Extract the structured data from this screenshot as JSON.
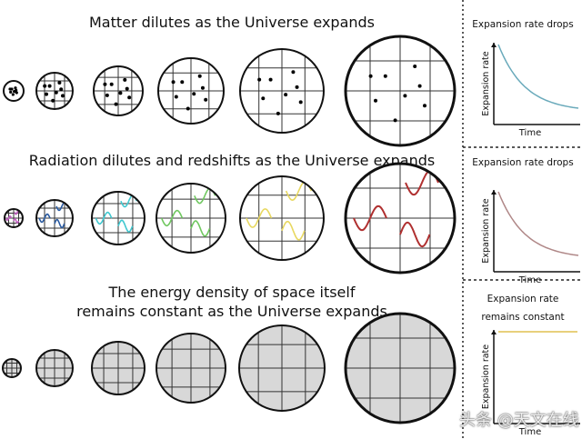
{
  "rows": [
    {
      "title_lines": [
        "Matter dilutes as the Universe expands"
      ],
      "kind": "matter"
    },
    {
      "title_lines": [
        "Radiation dilutes and redshifts as the Universe expands"
      ],
      "kind": "radiation",
      "wave_colors": [
        "#c060c0",
        "#2a5aa0",
        "#40c8d0",
        "#70c860",
        "#e8d860",
        "#b03030"
      ]
    },
    {
      "title_lines": [
        "The energy density of space itself",
        "remains constant as the Universe expands"
      ],
      "kind": "vacuum",
      "fill": "#d8d8d8"
    }
  ],
  "panels": [
    {
      "title_lines": [
        "Expansion rate drops"
      ],
      "ylabel": "Expansion rate",
      "xlabel": "Time",
      "curve": "decay",
      "color": "#6aaabb"
    },
    {
      "title_lines": [
        "Expansion rate drops"
      ],
      "ylabel": "Expansion rate",
      "xlabel": "Time",
      "curve": "decay",
      "color": "#b08888"
    },
    {
      "title_lines": [
        "Expansion rate",
        "remains constant"
      ],
      "ylabel": "Expansion rate",
      "xlabel": "Time",
      "curve": "constant",
      "color": "#e0c050"
    }
  ],
  "watermark": "头条 @天文在线"
}
